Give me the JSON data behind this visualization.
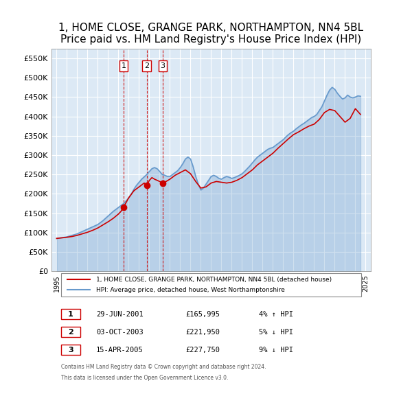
{
  "title": "1, HOME CLOSE, GRANGE PARK, NORTHAMPTON, NN4 5BL",
  "subtitle": "Price paid vs. HM Land Registry's House Price Index (HPI)",
  "title_fontsize": 11,
  "subtitle_fontsize": 9.5,
  "background_color": "#ffffff",
  "plot_bg_color": "#dce9f5",
  "grid_color": "#ffffff",
  "ylabel": "",
  "xlim_start": 1994.5,
  "xlim_end": 2025.5,
  "ylim_min": 0,
  "ylim_max": 575000,
  "yticks": [
    0,
    50000,
    100000,
    150000,
    200000,
    250000,
    300000,
    350000,
    400000,
    450000,
    500000,
    550000
  ],
  "ytick_labels": [
    "£0",
    "£50K",
    "£100K",
    "£150K",
    "£200K",
    "£250K",
    "£300K",
    "£350K",
    "£400K",
    "£450K",
    "£500K",
    "£550K"
  ],
  "xticks": [
    1995,
    1996,
    1997,
    1998,
    1999,
    2000,
    2001,
    2002,
    2003,
    2004,
    2005,
    2006,
    2007,
    2008,
    2009,
    2010,
    2011,
    2012,
    2013,
    2014,
    2015,
    2016,
    2017,
    2018,
    2019,
    2020,
    2021,
    2022,
    2023,
    2024,
    2025
  ],
  "red_line_color": "#cc0000",
  "blue_line_color": "#6699cc",
  "marker_color": "#cc0000",
  "dashed_vline_color": "#cc0000",
  "legend_box_color": "#ffffff",
  "legend_border_color": "#888888",
  "sale_label_box_color": "#ffffff",
  "sale_label_border_color": "#cc0000",
  "sale_label_text_color": "#000000",
  "purchases": [
    {
      "number": 1,
      "date_num": 2001.49,
      "price": 165995,
      "label": "1"
    },
    {
      "number": 2,
      "date_num": 2003.75,
      "price": 221950,
      "label": "2"
    },
    {
      "number": 3,
      "date_num": 2005.29,
      "price": 227750,
      "label": "3"
    }
  ],
  "table_rows": [
    {
      "num": "1",
      "date": "29-JUN-2001",
      "price": "£165,995",
      "change": "4% ↑ HPI"
    },
    {
      "num": "2",
      "date": "03-OCT-2003",
      "price": "£221,950",
      "change": "5% ↓ HPI"
    },
    {
      "num": "3",
      "date": "15-APR-2005",
      "price": "£227,750",
      "change": "9% ↓ HPI"
    }
  ],
  "legend_line1": "1, HOME CLOSE, GRANGE PARK, NORTHAMPTON, NN4 5BL (detached house)",
  "legend_line2": "HPI: Average price, detached house, West Northamptonshire",
  "footnote1": "Contains HM Land Registry data © Crown copyright and database right 2024.",
  "footnote2": "This data is licensed under the Open Government Licence v3.0.",
  "hpi_data": {
    "years": [
      1995.0,
      1995.25,
      1995.5,
      1995.75,
      1996.0,
      1996.25,
      1996.5,
      1996.75,
      1997.0,
      1997.25,
      1997.5,
      1997.75,
      1998.0,
      1998.25,
      1998.5,
      1998.75,
      1999.0,
      1999.25,
      1999.5,
      1999.75,
      2000.0,
      2000.25,
      2000.5,
      2000.75,
      2001.0,
      2001.25,
      2001.5,
      2001.75,
      2002.0,
      2002.25,
      2002.5,
      2002.75,
      2003.0,
      2003.25,
      2003.5,
      2003.75,
      2004.0,
      2004.25,
      2004.5,
      2004.75,
      2005.0,
      2005.25,
      2005.5,
      2005.75,
      2006.0,
      2006.25,
      2006.5,
      2006.75,
      2007.0,
      2007.25,
      2007.5,
      2007.75,
      2008.0,
      2008.25,
      2008.5,
      2008.75,
      2009.0,
      2009.25,
      2009.5,
      2009.75,
      2010.0,
      2010.25,
      2010.5,
      2010.75,
      2011.0,
      2011.25,
      2011.5,
      2011.75,
      2012.0,
      2012.25,
      2012.5,
      2012.75,
      2013.0,
      2013.25,
      2013.5,
      2013.75,
      2014.0,
      2014.25,
      2014.5,
      2014.75,
      2015.0,
      2015.25,
      2015.5,
      2015.75,
      2016.0,
      2016.25,
      2016.5,
      2016.75,
      2017.0,
      2017.25,
      2017.5,
      2017.75,
      2018.0,
      2018.25,
      2018.5,
      2018.75,
      2019.0,
      2019.25,
      2019.5,
      2019.75,
      2020.0,
      2020.25,
      2020.5,
      2020.75,
      2021.0,
      2021.25,
      2021.5,
      2021.75,
      2022.0,
      2022.25,
      2022.5,
      2022.75,
      2023.0,
      2023.25,
      2023.5,
      2023.75,
      2024.0,
      2024.25,
      2024.5
    ],
    "values": [
      85000,
      86000,
      87000,
      88000,
      89000,
      91000,
      93000,
      95000,
      97000,
      100000,
      103000,
      106000,
      109000,
      112000,
      115000,
      118000,
      121000,
      126000,
      131000,
      137000,
      143000,
      149000,
      155000,
      160000,
      165000,
      170000,
      175000,
      182000,
      190000,
      200000,
      212000,
      222000,
      230000,
      238000,
      244000,
      250000,
      258000,
      265000,
      268000,
      265000,
      258000,
      250000,
      248000,
      245000,
      245000,
      250000,
      255000,
      260000,
      268000,
      278000,
      290000,
      295000,
      290000,
      270000,
      245000,
      225000,
      210000,
      215000,
      225000,
      235000,
      245000,
      248000,
      245000,
      240000,
      238000,
      242000,
      245000,
      243000,
      240000,
      242000,
      245000,
      248000,
      252000,
      258000,
      265000,
      272000,
      280000,
      288000,
      295000,
      300000,
      305000,
      310000,
      315000,
      318000,
      320000,
      325000,
      330000,
      335000,
      340000,
      347000,
      353000,
      358000,
      362000,
      368000,
      373000,
      378000,
      382000,
      387000,
      392000,
      397000,
      400000,
      405000,
      415000,
      425000,
      440000,
      455000,
      468000,
      475000,
      470000,
      460000,
      452000,
      445000,
      448000,
      455000,
      450000,
      448000,
      450000,
      453000,
      452000
    ]
  },
  "red_data": {
    "years": [
      1995.0,
      1995.5,
      1996.0,
      1996.5,
      1997.0,
      1997.5,
      1998.0,
      1998.5,
      1999.0,
      1999.5,
      2000.0,
      2000.5,
      2001.0,
      2001.25,
      2001.49,
      2001.75,
      2002.0,
      2002.5,
      2003.0,
      2003.5,
      2003.75,
      2004.0,
      2004.25,
      2004.5,
      2005.0,
      2005.29,
      2005.5,
      2006.0,
      2006.5,
      2007.0,
      2007.5,
      2008.0,
      2008.5,
      2009.0,
      2009.5,
      2010.0,
      2010.5,
      2011.0,
      2011.5,
      2012.0,
      2012.5,
      2013.0,
      2013.5,
      2014.0,
      2014.5,
      2015.0,
      2015.5,
      2016.0,
      2016.5,
      2017.0,
      2017.5,
      2018.0,
      2018.5,
      2019.0,
      2019.5,
      2020.0,
      2020.5,
      2021.0,
      2021.5,
      2022.0,
      2022.5,
      2023.0,
      2023.5,
      2024.0,
      2024.5
    ],
    "values": [
      85000,
      86500,
      88000,
      90000,
      93000,
      97000,
      101000,
      106000,
      112000,
      120000,
      128000,
      137000,
      148000,
      155000,
      165995,
      178000,
      190000,
      208000,
      218000,
      228000,
      221950,
      235000,
      242000,
      238000,
      232000,
      227750,
      230000,
      238000,
      248000,
      255000,
      262000,
      252000,
      232000,
      215000,
      218000,
      228000,
      232000,
      230000,
      228000,
      230000,
      235000,
      242000,
      252000,
      262000,
      275000,
      285000,
      295000,
      305000,
      318000,
      330000,
      342000,
      353000,
      360000,
      368000,
      375000,
      380000,
      392000,
      410000,
      418000,
      415000,
      400000,
      385000,
      395000,
      420000,
      405000
    ]
  }
}
